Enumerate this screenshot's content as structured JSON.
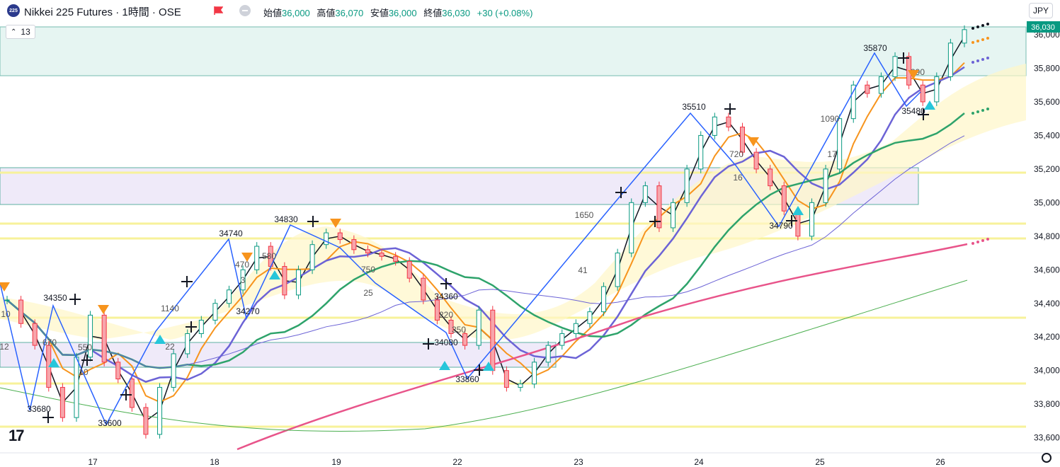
{
  "header": {
    "badge": "225",
    "title": "Nikkei 225 Futures · 1時間 · OSE",
    "open_label": "始値",
    "open": "36,000",
    "high_label": "高値",
    "high": "36,070",
    "low_label": "安値",
    "low": "36,000",
    "close_label": "終値",
    "close": "36,030",
    "change": "+30 (+0.08%)"
  },
  "indicator_badge": "13",
  "currency": "JPY",
  "current_price_label": "36,030",
  "logo": "17",
  "chart_data": {
    "type": "candlestick",
    "x_ticks": [
      "17",
      "18",
      "19",
      "22",
      "23",
      "24",
      "25",
      "26"
    ],
    "y_ticks": [
      33600,
      33800,
      34000,
      34200,
      34400,
      34600,
      34800,
      35000,
      35200,
      35400,
      35600,
      35800,
      36000
    ],
    "ylim": [
      33510,
      36080
    ],
    "price_annotations": [
      "34350",
      "33680",
      "33600",
      "34740",
      "34830",
      "34270",
      "34360",
      "34080",
      "33860",
      "35510",
      "34790",
      "35870",
      "35480"
    ],
    "count_annotations": [
      "670",
      "550",
      "10",
      "22",
      "470",
      "580",
      "3",
      "1140",
      "750",
      "25",
      "220",
      "350",
      "1650",
      "41",
      "720",
      "16",
      "1090",
      "17",
      "390",
      "10",
      "12"
    ],
    "series": [
      {
        "name": "candles",
        "close_path": [
          34420,
          34280,
          34150,
          33900,
          33720,
          34080,
          34330,
          34050,
          33950,
          33780,
          33620,
          33900,
          34100,
          34220,
          34300,
          34400,
          34480,
          34600,
          34740,
          34620,
          34450,
          34600,
          34750,
          34820,
          34780,
          34720,
          34700,
          34680,
          34650,
          34550,
          34420,
          34300,
          34220,
          34150,
          34360,
          34000,
          33900,
          33920,
          34050,
          34150,
          34220,
          34280,
          34350,
          34500,
          34700,
          35000,
          35100,
          34850,
          35000,
          35200,
          35400,
          35510,
          35450,
          35300,
          35200,
          35100,
          34950,
          34800,
          35000,
          35200,
          35500,
          35700,
          35650,
          35750,
          35870,
          35700,
          35600,
          35750,
          35950,
          36030
        ]
      }
    ]
  }
}
